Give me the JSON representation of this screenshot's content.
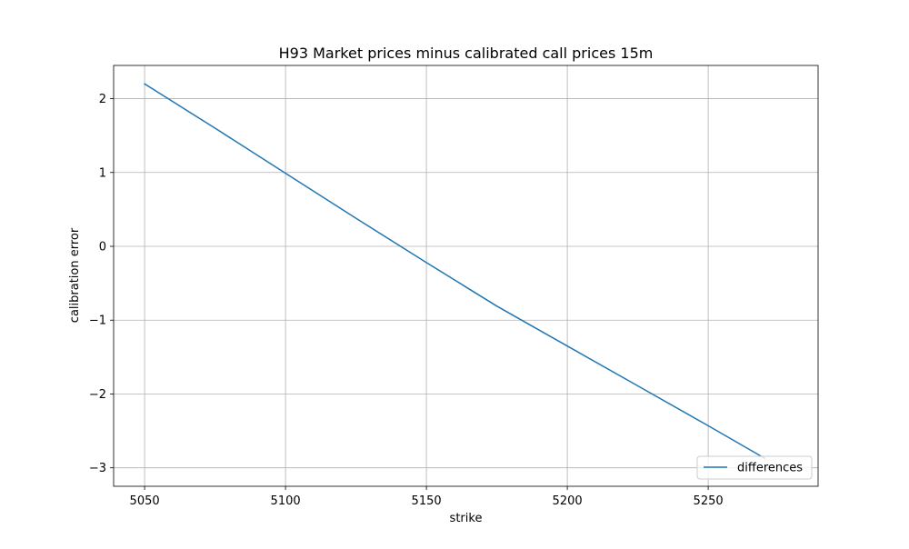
{
  "chart_data": {
    "type": "line",
    "title": "H93 Market prices minus calibrated call prices 15m",
    "xlabel": "strike",
    "ylabel": "calibration error",
    "xlim": [
      5039,
      5289
    ],
    "ylim": [
      -3.25,
      2.45
    ],
    "x_ticks": [
      5050,
      5100,
      5150,
      5200,
      5250
    ],
    "x_tick_labels": [
      "5050",
      "5100",
      "5150",
      "5200",
      "5250"
    ],
    "y_ticks": [
      2,
      1,
      0,
      -1,
      -2,
      -3
    ],
    "y_tick_labels": [
      "2",
      "1",
      "0",
      "−1",
      "−2",
      "−3"
    ],
    "grid": true,
    "legend_position": "lower-right",
    "series": [
      {
        "name": "differences",
        "color": "#1f77b4",
        "x": [
          5050,
          5075,
          5100,
          5125,
          5150,
          5175,
          5200,
          5225,
          5250,
          5270
        ],
        "y": [
          2.2,
          1.6,
          0.99,
          0.38,
          -0.22,
          -0.81,
          -1.35,
          -1.89,
          -2.43,
          -2.87
        ]
      }
    ]
  }
}
